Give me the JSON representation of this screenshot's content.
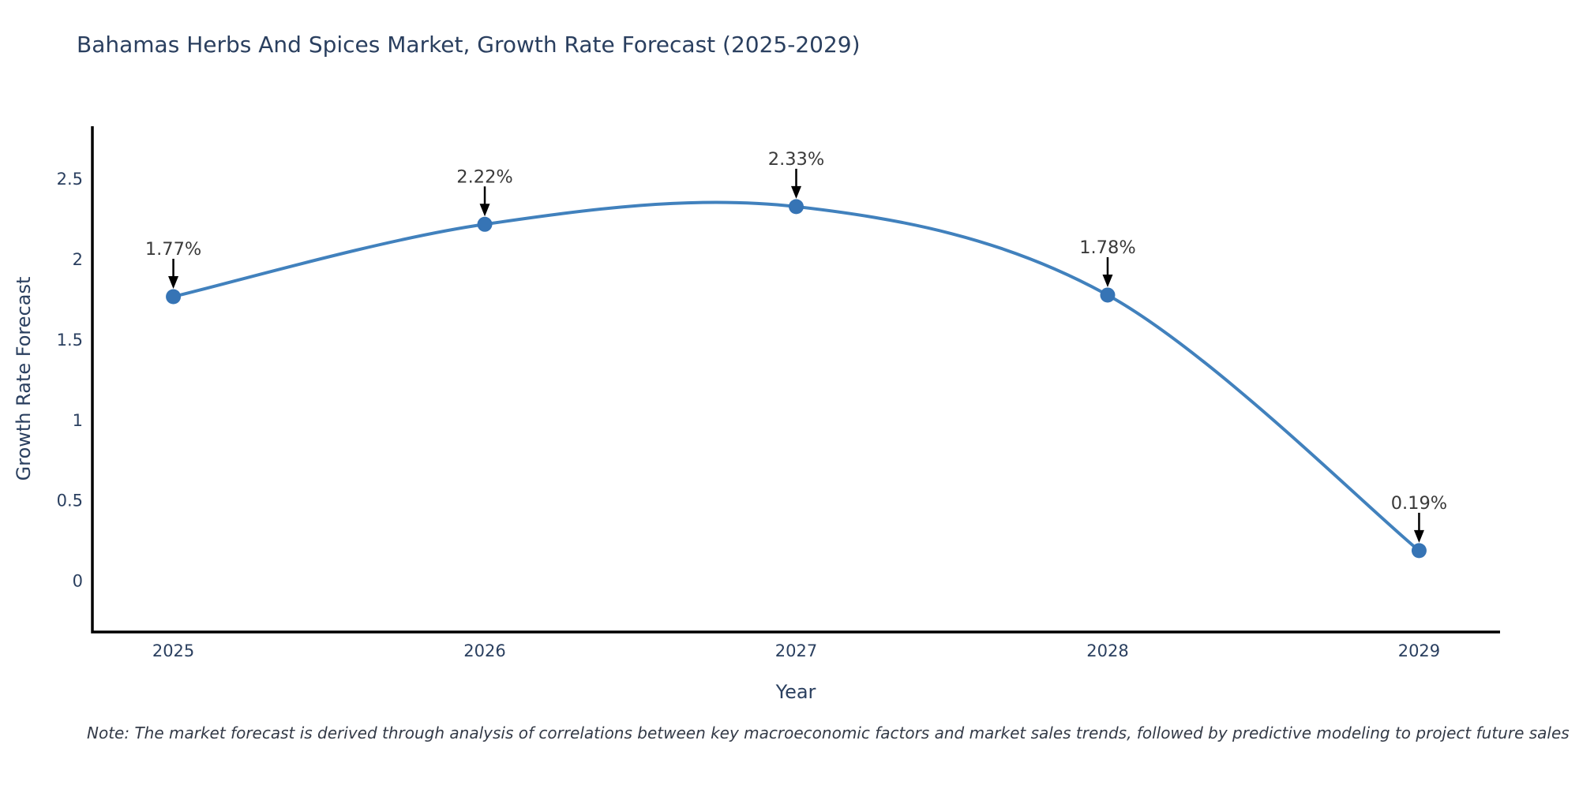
{
  "chart_data": {
    "type": "line",
    "title": "Bahamas Herbs And Spices Market, Growth Rate Forecast (2025-2029)",
    "xlabel": "Year",
    "ylabel": "Growth Rate Forecast",
    "x": [
      2025,
      2026,
      2027,
      2028,
      2029
    ],
    "values": [
      1.77,
      2.22,
      2.33,
      1.78,
      0.19
    ],
    "point_labels": [
      "1.77%",
      "2.22%",
      "2.33%",
      "1.78%",
      "0.19%"
    ],
    "xtick_labels": [
      "2025",
      "2026",
      "2027",
      "2028",
      "2029"
    ],
    "ytick_values": [
      0,
      0.5,
      1,
      1.5,
      2,
      2.5
    ],
    "ytick_labels": [
      "0",
      "0.5",
      "1",
      "1.5",
      "2",
      "2.5"
    ],
    "xlim": [
      2024.74,
      2029.26
    ],
    "ylim": [
      -0.316,
      2.83
    ],
    "grid": false,
    "legend": false,
    "line_shape": "spline",
    "annotations_have_arrows": true,
    "colors": {
      "line": "#4181bd",
      "marker": "#3674b5",
      "axis_line": "#000000",
      "axis_text": "#2a3f5f",
      "annotation_text": "#3a3a3a",
      "arrow": "#000000",
      "background": "#ffffff"
    }
  },
  "note": {
    "text": "Note: The market forecast is derived through analysis of correlations between key macroeconomic factors and market sales trends, followed by predictive modeling to project future sales"
  }
}
